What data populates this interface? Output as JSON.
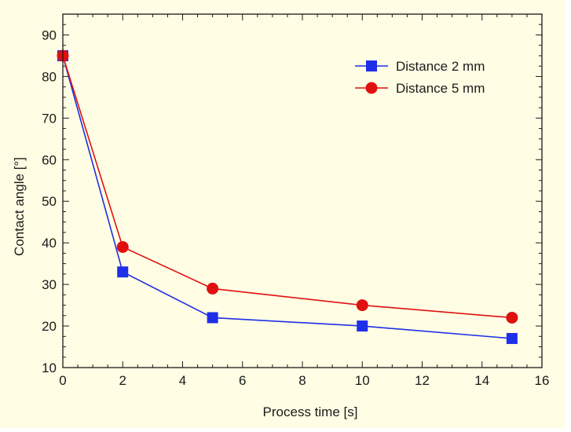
{
  "colors": {
    "background": "#ffffff",
    "plot_background": "#fffde4",
    "axis": "#1a1a1a",
    "series_blue": "#1f2ee8",
    "series_red": "#e01010"
  },
  "chart_data": {
    "type": "line",
    "title": "",
    "xlabel": "Process time [s]",
    "ylabel": "Contact angle [°]",
    "xlim": [
      0,
      16
    ],
    "ylim": [
      10,
      95
    ],
    "xticks": [
      0,
      2,
      4,
      6,
      8,
      10,
      12,
      14,
      16
    ],
    "yticks": [
      10,
      20,
      30,
      40,
      50,
      60,
      70,
      80,
      90
    ],
    "grid": false,
    "legend_position": "top-right",
    "series": [
      {
        "name": "Distance 2 mm",
        "color": "#1f2ee8",
        "marker": "square",
        "x": [
          0,
          2,
          5,
          10,
          15
        ],
        "y": [
          85,
          33,
          22,
          20,
          17
        ]
      },
      {
        "name": "Distance 5 mm",
        "color": "#e01010",
        "marker": "circle",
        "x": [
          0,
          2,
          5,
          10,
          15
        ],
        "y": [
          85,
          39,
          29,
          25,
          22
        ]
      }
    ]
  }
}
